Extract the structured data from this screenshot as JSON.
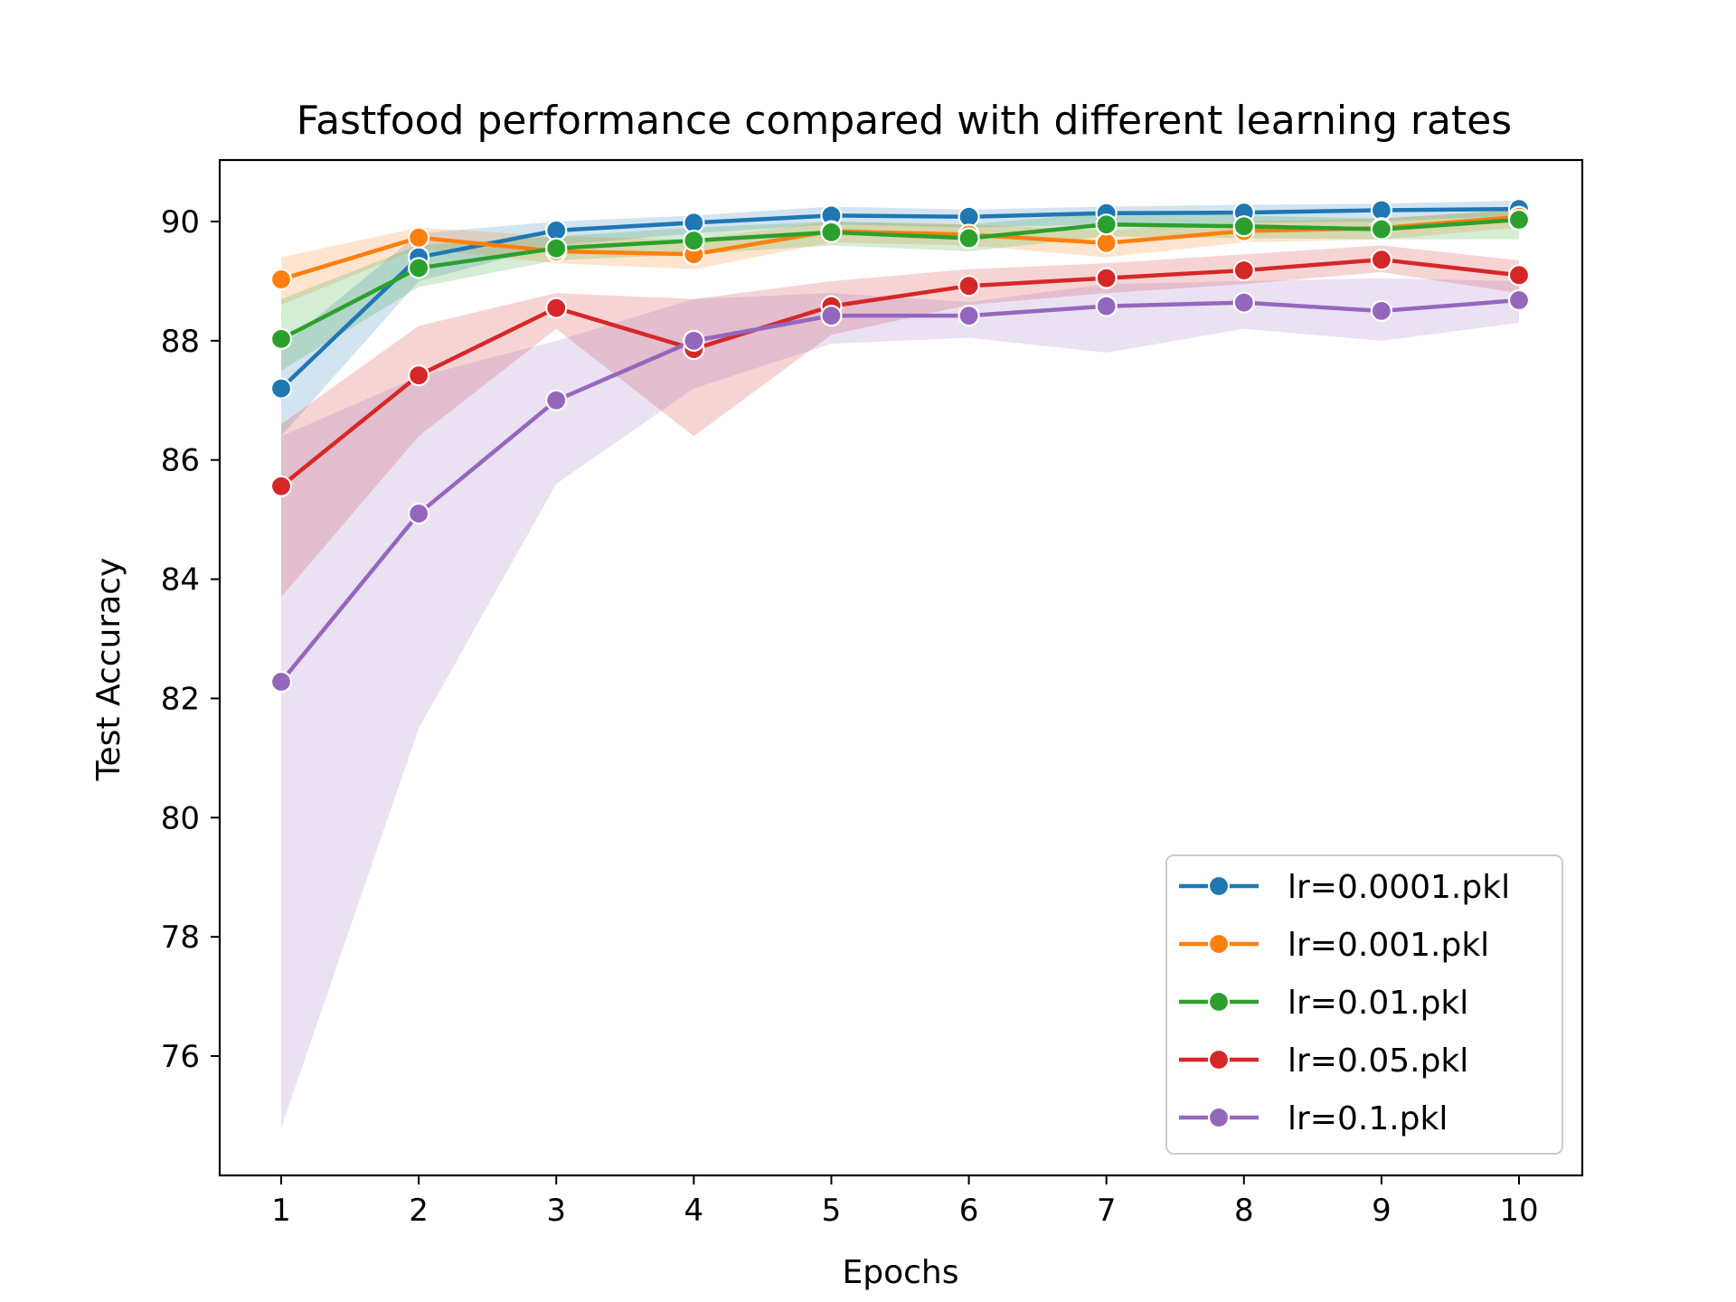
{
  "chart_data": {
    "type": "line",
    "title": "Fastfood performance compared with different learning rates",
    "xlabel": "Epochs",
    "ylabel": "Test Accuracy",
    "x": [
      1,
      2,
      3,
      4,
      5,
      6,
      7,
      8,
      9,
      10
    ],
    "xlim": [
      0.55,
      10.45
    ],
    "ylim": [
      74.0,
      91.0
    ],
    "xticks": [
      "1",
      "2",
      "3",
      "4",
      "5",
      "6",
      "7",
      "8",
      "9",
      "10"
    ],
    "yticks": [
      "76",
      "78",
      "80",
      "82",
      "84",
      "86",
      "88",
      "90"
    ],
    "ytick_values": [
      76,
      78,
      80,
      82,
      84,
      86,
      88,
      90
    ],
    "grid": false,
    "legend_position": "lower-right",
    "series": [
      {
        "name": "lr=0.0001.pkl",
        "color": "#1f77b4",
        "values": [
          87.2,
          89.4,
          89.85,
          89.98,
          90.1,
          90.08,
          90.14,
          90.15,
          90.19,
          90.21
        ],
        "ci_low": [
          86.4,
          89.0,
          89.6,
          89.8,
          89.95,
          89.9,
          89.95,
          89.98,
          90.0,
          90.1
        ],
        "ci_high": [
          87.9,
          89.8,
          90.0,
          90.1,
          90.25,
          90.2,
          90.25,
          90.28,
          90.3,
          90.35
        ]
      },
      {
        "name": "lr=0.001.pkl",
        "color": "#ff7f0e",
        "values": [
          89.03,
          89.73,
          89.5,
          89.45,
          89.84,
          89.78,
          89.64,
          89.84,
          89.89,
          90.08
        ],
        "ci_low": [
          88.6,
          89.55,
          89.3,
          89.2,
          89.65,
          89.6,
          89.4,
          89.65,
          89.7,
          89.9
        ],
        "ci_high": [
          89.4,
          89.9,
          89.75,
          89.7,
          90.0,
          89.95,
          89.85,
          90.0,
          90.05,
          90.2
        ]
      },
      {
        "name": "lr=0.01.pkl",
        "color": "#2ca02c",
        "values": [
          88.03,
          89.22,
          89.55,
          89.68,
          89.82,
          89.72,
          89.95,
          89.92,
          89.87,
          90.03
        ],
        "ci_low": [
          87.5,
          88.9,
          89.35,
          89.45,
          89.6,
          89.5,
          89.75,
          89.72,
          89.7,
          89.7
        ],
        "ci_high": [
          88.7,
          89.6,
          89.75,
          89.9,
          90.0,
          89.95,
          90.15,
          90.1,
          90.05,
          90.2
        ]
      },
      {
        "name": "lr=0.05.pkl",
        "color": "#d62728",
        "values": [
          85.56,
          87.42,
          88.55,
          87.86,
          88.58,
          88.92,
          89.05,
          89.18,
          89.36,
          89.1
        ],
        "ci_low": [
          83.7,
          86.4,
          88.2,
          86.4,
          88.1,
          88.6,
          88.8,
          88.95,
          89.15,
          88.8
        ],
        "ci_high": [
          86.6,
          88.25,
          88.8,
          88.7,
          89.0,
          89.2,
          89.3,
          89.45,
          89.6,
          89.35
        ]
      },
      {
        "name": "lr=0.1.pkl",
        "color": "#9467bd",
        "values": [
          82.28,
          85.1,
          87.0,
          88.0,
          88.42,
          88.42,
          88.58,
          88.64,
          88.5,
          88.68
        ],
        "ci_low": [
          74.8,
          81.5,
          85.6,
          87.2,
          87.95,
          88.05,
          87.8,
          88.2,
          88.0,
          88.3
        ],
        "ci_high": [
          86.4,
          87.4,
          88.0,
          88.7,
          88.8,
          88.65,
          88.95,
          89.0,
          89.05,
          89.0
        ]
      }
    ]
  }
}
